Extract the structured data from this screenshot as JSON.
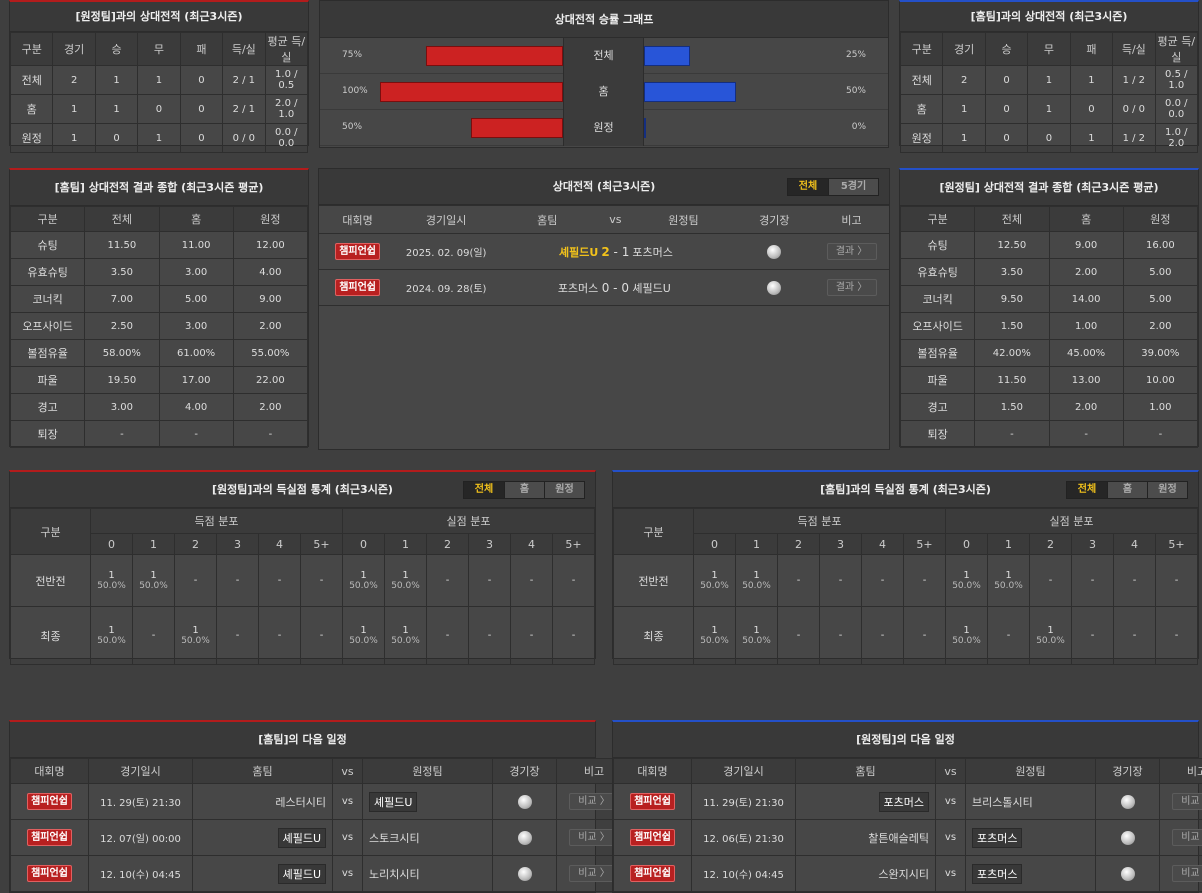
{
  "h2h_left": {
    "title": "[원정팀]과의 상대전적 (최근3시즌)",
    "headers": [
      "구분",
      "경기",
      "승",
      "무",
      "패",
      "득/실",
      "평균 득/실"
    ],
    "rows": [
      [
        "전체",
        "2",
        "1",
        "1",
        "0",
        "2 / 1",
        "1.0 / 0.5"
      ],
      [
        "홈",
        "1",
        "1",
        "0",
        "0",
        "2 / 1",
        "2.0 / 1.0"
      ],
      [
        "원정",
        "1",
        "0",
        "1",
        "0",
        "0 / 0",
        "0.0 / 0.0"
      ]
    ]
  },
  "h2h_right": {
    "title": "[홈팀]과의 상대전적 (최근3시즌)",
    "headers": [
      "구분",
      "경기",
      "승",
      "무",
      "패",
      "득/실",
      "평균 득/실"
    ],
    "rows": [
      [
        "전체",
        "2",
        "0",
        "1",
        "1",
        "1 / 2",
        "0.5 / 1.0"
      ],
      [
        "홈",
        "1",
        "0",
        "1",
        "0",
        "0 / 0",
        "0.0 / 0.0"
      ],
      [
        "원정",
        "1",
        "0",
        "0",
        "1",
        "1 / 2",
        "1.0 / 2.0"
      ]
    ]
  },
  "graph": {
    "title": "상대전적 승률 그래프",
    "rows": [
      {
        "label": "전체",
        "left": "75%",
        "right": "25%",
        "lv": 75,
        "rv": 25
      },
      {
        "label": "홈",
        "left": "100%",
        "right": "50%",
        "lv": 100,
        "rv": 50
      },
      {
        "label": "원정",
        "left": "50%",
        "right": "0%",
        "lv": 50,
        "rv": 0
      }
    ],
    "colors": {
      "home": "#cc2222",
      "away": "#2855d8"
    }
  },
  "summary_home": {
    "title": "[홈팀] 상대전적 결과 종합 (최근3시즌 평균)",
    "headers": [
      "구분",
      "전체",
      "홈",
      "원정"
    ],
    "rows": [
      [
        "슈팅",
        "11.50",
        "11.00",
        "12.00"
      ],
      [
        "유효슈팅",
        "3.50",
        "3.00",
        "4.00"
      ],
      [
        "코너킥",
        "7.00",
        "5.00",
        "9.00"
      ],
      [
        "오프사이드",
        "2.50",
        "3.00",
        "2.00"
      ],
      [
        "볼점유율",
        "58.00%",
        "61.00%",
        "55.00%"
      ],
      [
        "파울",
        "19.50",
        "17.00",
        "22.00"
      ],
      [
        "경고",
        "3.00",
        "4.00",
        "2.00"
      ],
      [
        "퇴장",
        "-",
        "-",
        "-"
      ]
    ]
  },
  "summary_away": {
    "title": "[원정팀] 상대전적 결과 종합 (최근3시즌 평균)",
    "headers": [
      "구분",
      "전체",
      "홈",
      "원정"
    ],
    "rows": [
      [
        "슈팅",
        "12.50",
        "9.00",
        "16.00"
      ],
      [
        "유효슈팅",
        "3.50",
        "2.00",
        "5.00"
      ],
      [
        "코너킥",
        "9.50",
        "14.00",
        "5.00"
      ],
      [
        "오프사이드",
        "1.50",
        "1.00",
        "2.00"
      ],
      [
        "볼점유율",
        "42.00%",
        "45.00%",
        "39.00%"
      ],
      [
        "파울",
        "11.50",
        "13.00",
        "10.00"
      ],
      [
        "경고",
        "1.50",
        "2.00",
        "1.00"
      ],
      [
        "퇴장",
        "-",
        "-",
        "-"
      ]
    ]
  },
  "matches": {
    "title": "상대전적 (최근3시즌)",
    "tabs": [
      "전체",
      "5경기"
    ],
    "headers": [
      "대회명",
      "경기일시",
      "홈팀",
      "vs",
      "원정팀",
      "경기장",
      "비고"
    ],
    "rows": [
      {
        "league": "챔피언쉽",
        "date": "2025. 02. 09(일)",
        "home": "셰필드U",
        "hs": "2",
        "dash": "-",
        "as": "1",
        "away": "포츠머스",
        "btn": "결과 〉"
      },
      {
        "league": "챔피언쉽",
        "date": "2024. 09. 28(토)",
        "home": "포츠머스",
        "hs": "0",
        "dash": "-",
        "as": "0",
        "away": "셰필드U",
        "btn": "결과 〉"
      }
    ]
  },
  "goals_left": {
    "title": "[원정팀]과의 득실점 통계 (최근3시즌)",
    "tabs": [
      "전체",
      "홈",
      "원정"
    ],
    "col": "구분",
    "score_dist": "득점 분포",
    "concede_dist": "실점 분포",
    "buckets": [
      "0",
      "1",
      "2",
      "3",
      "4",
      "5+"
    ],
    "rows": [
      {
        "label": "전반전",
        "scored": [
          [
            "1",
            "50.0%"
          ],
          [
            "1",
            "50.0%"
          ],
          [
            "-",
            ""
          ],
          [
            "-",
            ""
          ],
          [
            "-",
            ""
          ],
          [
            "-",
            ""
          ]
        ],
        "conceded": [
          [
            "1",
            "50.0%"
          ],
          [
            "1",
            "50.0%"
          ],
          [
            "-",
            ""
          ],
          [
            "-",
            ""
          ],
          [
            "-",
            ""
          ],
          [
            "-",
            ""
          ]
        ]
      },
      {
        "label": "최종",
        "scored": [
          [
            "1",
            "50.0%"
          ],
          [
            "-",
            ""
          ],
          [
            "1",
            "50.0%"
          ],
          [
            "-",
            ""
          ],
          [
            "-",
            ""
          ],
          [
            "-",
            ""
          ]
        ],
        "conceded": [
          [
            "1",
            "50.0%"
          ],
          [
            "1",
            "50.0%"
          ],
          [
            "-",
            ""
          ],
          [
            "-",
            ""
          ],
          [
            "-",
            ""
          ],
          [
            "-",
            ""
          ]
        ]
      }
    ]
  },
  "goals_right": {
    "title": "[홈팀]과의 득실점 통계 (최근3시즌)",
    "tabs": [
      "전체",
      "홈",
      "원정"
    ],
    "col": "구분",
    "score_dist": "득점 분포",
    "concede_dist": "실점 분포",
    "buckets": [
      "0",
      "1",
      "2",
      "3",
      "4",
      "5+"
    ],
    "rows": [
      {
        "label": "전반전",
        "scored": [
          [
            "1",
            "50.0%"
          ],
          [
            "1",
            "50.0%"
          ],
          [
            "-",
            ""
          ],
          [
            "-",
            ""
          ],
          [
            "-",
            ""
          ],
          [
            "-",
            ""
          ]
        ],
        "conceded": [
          [
            "1",
            "50.0%"
          ],
          [
            "1",
            "50.0%"
          ],
          [
            "-",
            ""
          ],
          [
            "-",
            ""
          ],
          [
            "-",
            ""
          ],
          [
            "-",
            ""
          ]
        ]
      },
      {
        "label": "최종",
        "scored": [
          [
            "1",
            "50.0%"
          ],
          [
            "1",
            "50.0%"
          ],
          [
            "-",
            ""
          ],
          [
            "-",
            ""
          ],
          [
            "-",
            ""
          ],
          [
            "-",
            ""
          ]
        ],
        "conceded": [
          [
            "1",
            "50.0%"
          ],
          [
            "-",
            ""
          ],
          [
            "1",
            "50.0%"
          ],
          [
            "-",
            ""
          ],
          [
            "-",
            ""
          ],
          [
            "-",
            ""
          ]
        ]
      }
    ]
  },
  "next_home": {
    "title": "[홈팀]의 다음 일정",
    "headers": [
      "대회명",
      "경기일시",
      "홈팀",
      "vs",
      "원정팀",
      "경기장",
      "비고"
    ],
    "rows": [
      {
        "league": "챔피언쉽",
        "date": "11. 29(토) 21:30",
        "home": "레스터시티",
        "vs": "vs",
        "away": "셰필드U",
        "hl": "away",
        "btn": "비교 〉"
      },
      {
        "league": "챔피언쉽",
        "date": "12. 07(일) 00:00",
        "home": "셰필드U",
        "vs": "vs",
        "away": "스토크시티",
        "hl": "home",
        "btn": "비교 〉"
      },
      {
        "league": "챔피언쉽",
        "date": "12. 10(수) 04:45",
        "home": "셰필드U",
        "vs": "vs",
        "away": "노리치시티",
        "hl": "home",
        "btn": "비교 〉"
      }
    ]
  },
  "next_away": {
    "title": "[원정팀]의 다음 일정",
    "headers": [
      "대회명",
      "경기일시",
      "홈팀",
      "vs",
      "원정팀",
      "경기장",
      "비고"
    ],
    "rows": [
      {
        "league": "챔피언쉽",
        "date": "11. 29(토) 21:30",
        "home": "포츠머스",
        "vs": "vs",
        "away": "브리스톨시티",
        "hl": "home",
        "btn": "비교 〉"
      },
      {
        "league": "챔피언쉽",
        "date": "12. 06(토) 21:30",
        "home": "찰튼애슬레틱",
        "vs": "vs",
        "away": "포츠머스",
        "hl": "away",
        "btn": "비교 〉"
      },
      {
        "league": "챔피언쉽",
        "date": "12. 10(수) 04:45",
        "home": "스완지시티",
        "vs": "vs",
        "away": "포츠머스",
        "hl": "away",
        "btn": "비교 〉"
      }
    ]
  }
}
